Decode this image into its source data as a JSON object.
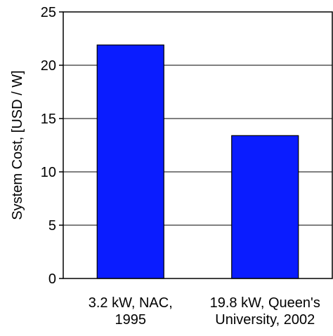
{
  "chart_data": {
    "type": "bar",
    "title": "",
    "xlabel": "",
    "ylabel": "System Cost, [USD / W]",
    "categories": [
      [
        "3.2 kW, NAC,",
        "1995"
      ],
      [
        "19.8 kW, Queen's",
        "University, 2002"
      ]
    ],
    "values": [
      21.9,
      13.4
    ],
    "ylim": [
      0,
      25
    ],
    "yticks": [
      0,
      5,
      10,
      15,
      20,
      25
    ],
    "grid": true,
    "legend": "none",
    "bar_color": "#0a1cff"
  }
}
